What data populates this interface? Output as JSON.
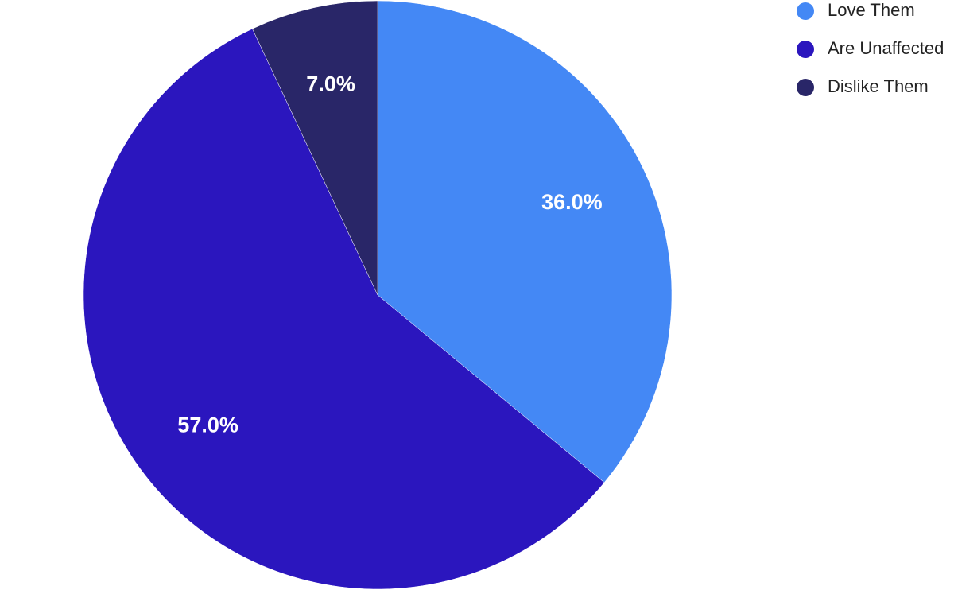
{
  "chart_data": {
    "type": "pie",
    "categories": [
      "Love Them",
      "Are Unaffected",
      "Dislike Them"
    ],
    "values": [
      36,
      57,
      7
    ],
    "value_labels": [
      "36.0%",
      "57.0%",
      "7.0%"
    ],
    "colors": [
      "#4488f5",
      "#2b16be",
      "#292668"
    ],
    "legend": "top-right"
  }
}
